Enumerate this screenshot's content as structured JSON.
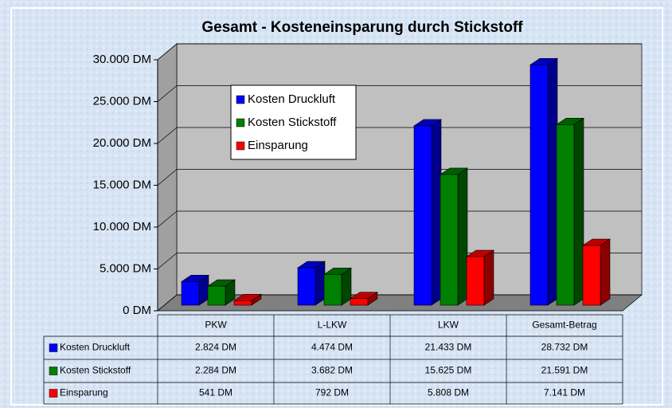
{
  "chart_data": {
    "type": "bar3d",
    "title": "Gesamt - Kosteneinsparung durch Stickstoff",
    "categories": [
      "PKW",
      "L-LKW",
      "LKW",
      "Gesamt-Betrag"
    ],
    "series": [
      {
        "name": "Kosten Druckluft",
        "color": "#0000ff",
        "values": [
          2824,
          4474,
          21433,
          28732
        ],
        "value_labels": [
          "2.824 DM",
          "4.474 DM",
          "21.433 DM",
          "28.732 DM"
        ]
      },
      {
        "name": "Kosten Stickstoff",
        "color": "#008000",
        "values": [
          2284,
          3682,
          15625,
          21591
        ],
        "value_labels": [
          "2.284 DM",
          "3.682 DM",
          "15.625 DM",
          "21.591 DM"
        ]
      },
      {
        "name": "Einsparung",
        "color": "#ff0000",
        "values": [
          541,
          792,
          5808,
          7141
        ],
        "value_labels": [
          "541 DM",
          "792 DM",
          "5.808 DM",
          "7.141 DM"
        ]
      }
    ],
    "ylim": [
      0,
      30000
    ],
    "yticks": [
      {
        "value": 0,
        "label": "0 DM"
      },
      {
        "value": 5000,
        "label": "5.000 DM"
      },
      {
        "value": 10000,
        "label": "10.000 DM"
      },
      {
        "value": 15000,
        "label": "15.000 DM"
      },
      {
        "value": 20000,
        "label": "20.000 DM"
      },
      {
        "value": 25000,
        "label": "25.000 DM"
      },
      {
        "value": 30000,
        "label": "30.000 DM"
      }
    ],
    "grid": true,
    "legend": "upper left"
  }
}
